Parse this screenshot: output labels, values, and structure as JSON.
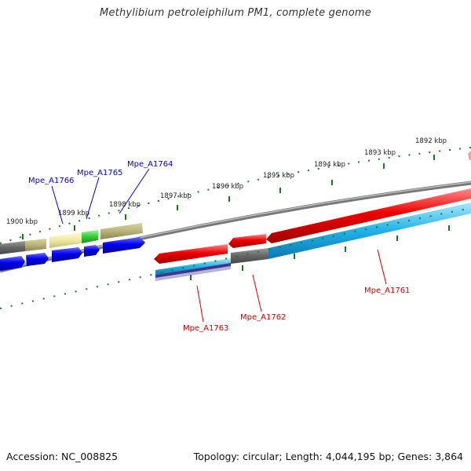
{
  "header": {
    "title": "Methylibium petroleiphilum PM1, complete genome"
  },
  "footer": {
    "accession": "Accession: NC_008825",
    "topology": "Topology: circular; Length: 4,044,195 bp; Genes: 3,864"
  },
  "ticks": [
    "1900 kbp",
    "1899 kbp",
    "1898 kbp",
    "1897 kbp",
    "1896 kbp",
    "1895 kbp",
    "1894 kbp",
    "1893 kbp",
    "1892 kbp"
  ],
  "genes": [
    {
      "label": "Mpe_A1766",
      "color": "#0000cc"
    },
    {
      "label": "Mpe_A1765",
      "color": "#0000cc"
    },
    {
      "label": "Mpe_A1764",
      "color": "#0000cc"
    },
    {
      "label": "Mpe_A1763",
      "color": "#cc0000"
    },
    {
      "label": "Mpe_A1762",
      "color": "#cc0000"
    },
    {
      "label": "Mpe_A1761",
      "color": "#cc0000"
    }
  ],
  "colors": {
    "forward_strand": "#0000ee",
    "reverse_strand": "#ee0000",
    "blast_cyan": "#1fb2e8",
    "backbone": "#808080",
    "tick": "#1a7a1a"
  }
}
